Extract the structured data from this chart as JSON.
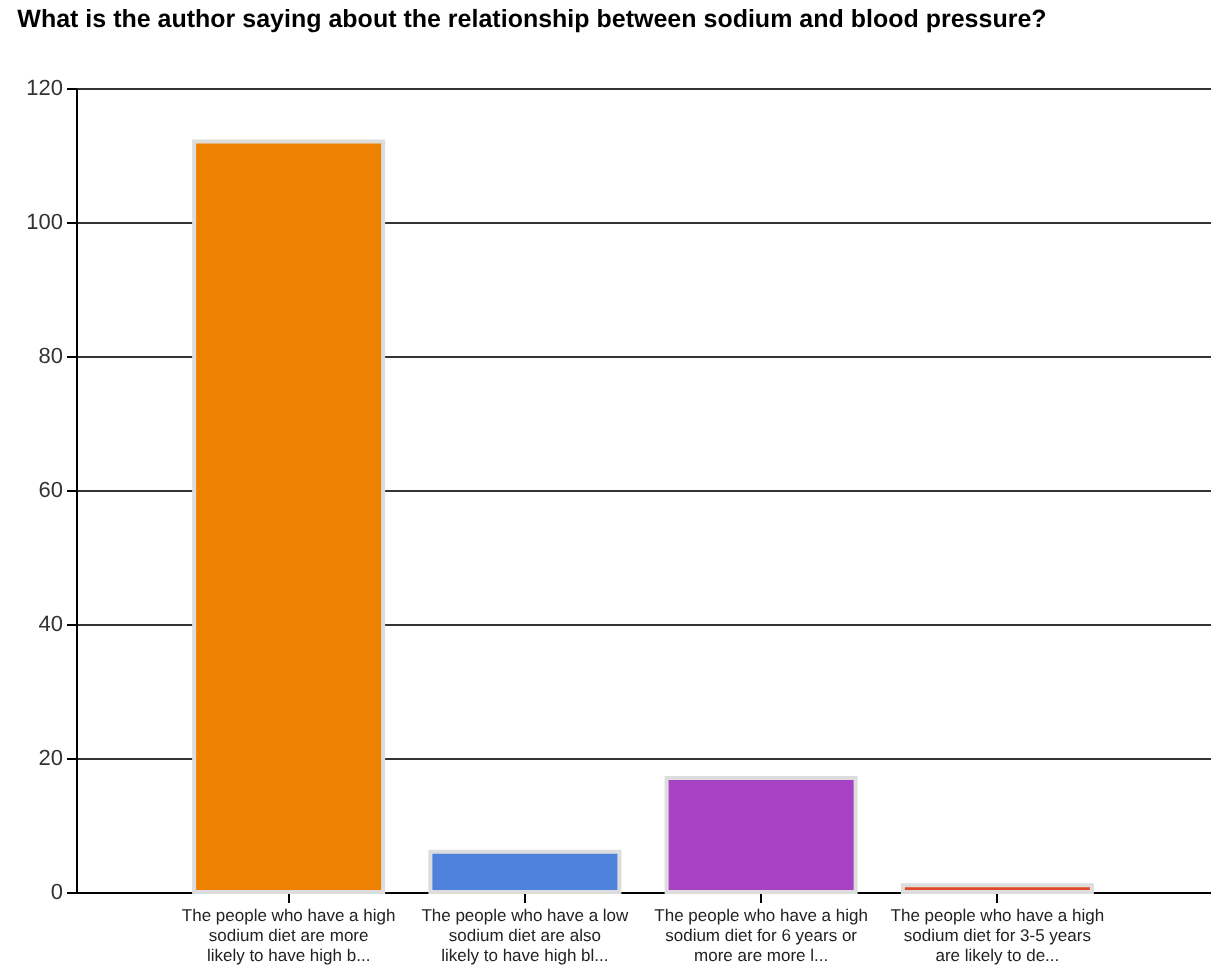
{
  "chart_data": {
    "type": "bar",
    "title": "What is the author saying about the relationship between sodium and blood pressure?",
    "categories": [
      "The people who have a high sodium diet are more likely to have high b...",
      "The people who have a low sodium diet are also likely to have high bl...",
      "The people who have a high sodium diet for 6 years or more are more l...",
      "The people who have a high sodium diet for 3-5 years are likely to de..."
    ],
    "values": [
      112,
      6,
      17,
      1
    ],
    "colors": [
      "#ee8200",
      "#4f82dc",
      "#a842c4",
      "#e04a26"
    ],
    "ylim": [
      0,
      120
    ],
    "yticks": [
      0,
      20,
      40,
      60,
      80,
      100,
      120
    ],
    "grid": "y"
  }
}
